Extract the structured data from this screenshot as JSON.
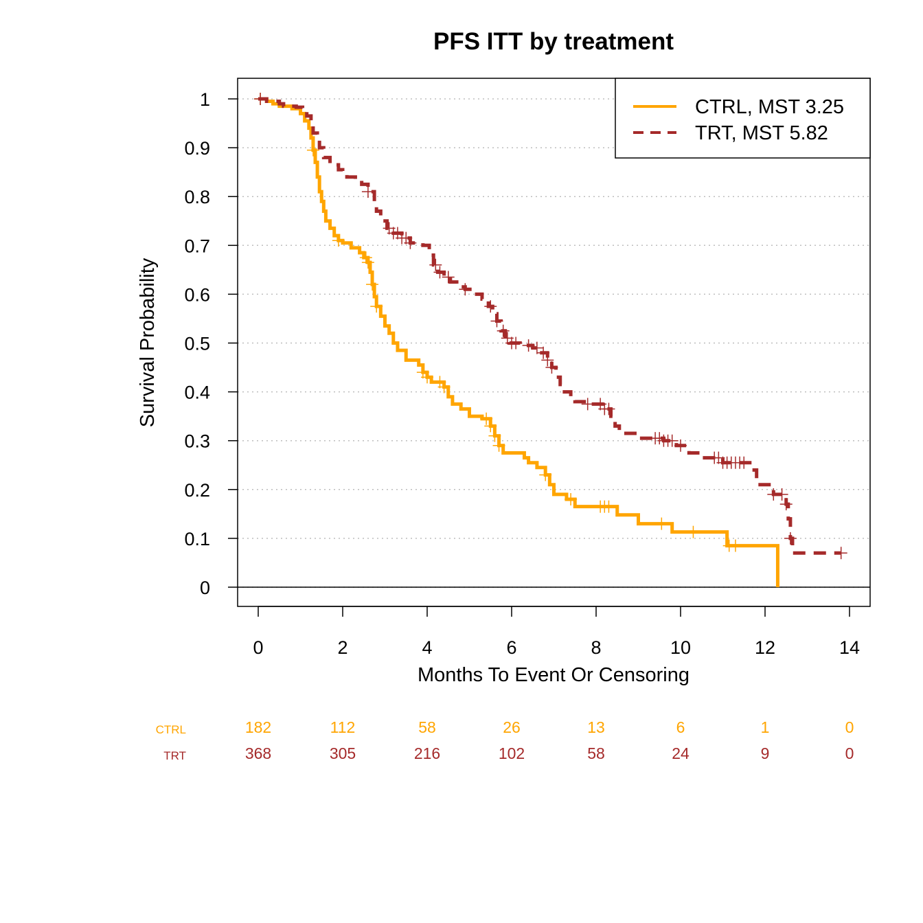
{
  "chart_data": {
    "type": "line",
    "title": "PFS ITT by treatment",
    "xlabel": "Months To Event Or Censoring",
    "ylabel": "Survival Probability",
    "xlim": [
      -0.5,
      14.5
    ],
    "ylim": [
      -0.04,
      1.04
    ],
    "x_ticks": [
      0,
      2,
      4,
      6,
      8,
      10,
      12,
      14
    ],
    "y_ticks": [
      0,
      0.1,
      0.2,
      0.3,
      0.4,
      0.5,
      0.6,
      0.7,
      0.8,
      0.9,
      1
    ],
    "x_tick_labels": [
      "0",
      "2",
      "4",
      "6",
      "8",
      "10",
      "12",
      "14"
    ],
    "y_tick_labels": [
      "0",
      "0.1",
      "0.2",
      "0.3",
      "0.4",
      "0.5",
      "0.6",
      "0.7",
      "0.8",
      "0.9",
      "1"
    ],
    "grid": "horizontal dotted at y ticks",
    "legend_position": "top-right",
    "series": [
      {
        "name": "CTRL, MST 3.25",
        "color": "#FFA500",
        "dash": "solid",
        "steps": [
          [
            0,
            1
          ],
          [
            0.2,
            0.995
          ],
          [
            0.35,
            0.99
          ],
          [
            0.5,
            0.985
          ],
          [
            0.8,
            0.98
          ],
          [
            1.0,
            0.97
          ],
          [
            1.1,
            0.955
          ],
          [
            1.2,
            0.94
          ],
          [
            1.25,
            0.92
          ],
          [
            1.3,
            0.895
          ],
          [
            1.35,
            0.87
          ],
          [
            1.4,
            0.84
          ],
          [
            1.45,
            0.81
          ],
          [
            1.5,
            0.79
          ],
          [
            1.55,
            0.77
          ],
          [
            1.6,
            0.75
          ],
          [
            1.7,
            0.735
          ],
          [
            1.8,
            0.72
          ],
          [
            1.9,
            0.71
          ],
          [
            2.0,
            0.705
          ],
          [
            2.2,
            0.695
          ],
          [
            2.4,
            0.685
          ],
          [
            2.5,
            0.675
          ],
          [
            2.6,
            0.665
          ],
          [
            2.65,
            0.645
          ],
          [
            2.7,
            0.62
          ],
          [
            2.75,
            0.595
          ],
          [
            2.8,
            0.575
          ],
          [
            2.9,
            0.555
          ],
          [
            3.0,
            0.535
          ],
          [
            3.1,
            0.52
          ],
          [
            3.2,
            0.5
          ],
          [
            3.3,
            0.485
          ],
          [
            3.5,
            0.465
          ],
          [
            3.8,
            0.455
          ],
          [
            3.9,
            0.44
          ],
          [
            4.0,
            0.43
          ],
          [
            4.1,
            0.42
          ],
          [
            4.4,
            0.41
          ],
          [
            4.5,
            0.39
          ],
          [
            4.6,
            0.375
          ],
          [
            4.8,
            0.365
          ],
          [
            5.0,
            0.35
          ],
          [
            5.3,
            0.345
          ],
          [
            5.5,
            0.33
          ],
          [
            5.6,
            0.31
          ],
          [
            5.7,
            0.29
          ],
          [
            5.8,
            0.275
          ],
          [
            6.3,
            0.265
          ],
          [
            6.4,
            0.255
          ],
          [
            6.6,
            0.245
          ],
          [
            6.8,
            0.23
          ],
          [
            6.9,
            0.21
          ],
          [
            7.0,
            0.19
          ],
          [
            7.3,
            0.18
          ],
          [
            7.5,
            0.165
          ],
          [
            8.5,
            0.148
          ],
          [
            9.0,
            0.13
          ],
          [
            9.8,
            0.113
          ],
          [
            11.1,
            0.085
          ],
          [
            12.3,
            0
          ]
        ],
        "censor_x": [
          0.05,
          1.3,
          1.9,
          2.55,
          2.6,
          2.7,
          2.8,
          3.9,
          4.0,
          4.3,
          4.4,
          5.4,
          5.5,
          5.6,
          5.7,
          6.8,
          7.4,
          8.1,
          8.2,
          8.3,
          9.55,
          10.3,
          11.15,
          11.3
        ]
      },
      {
        "name": "TRT, MST 5.82",
        "color": "#A52A2A",
        "dash": "dashed",
        "steps": [
          [
            0,
            1
          ],
          [
            0.2,
            0.995
          ],
          [
            0.5,
            0.99
          ],
          [
            0.6,
            0.985
          ],
          [
            0.9,
            0.983
          ],
          [
            1.05,
            0.98
          ],
          [
            1.15,
            0.965
          ],
          [
            1.25,
            0.945
          ],
          [
            1.3,
            0.93
          ],
          [
            1.4,
            0.915
          ],
          [
            1.45,
            0.9
          ],
          [
            1.55,
            0.88
          ],
          [
            1.7,
            0.865
          ],
          [
            1.9,
            0.855
          ],
          [
            2.0,
            0.85
          ],
          [
            2.1,
            0.84
          ],
          [
            2.3,
            0.835
          ],
          [
            2.45,
            0.825
          ],
          [
            2.6,
            0.81
          ],
          [
            2.75,
            0.79
          ],
          [
            2.8,
            0.77
          ],
          [
            2.9,
            0.75
          ],
          [
            3.05,
            0.735
          ],
          [
            3.2,
            0.725
          ],
          [
            3.4,
            0.715
          ],
          [
            3.6,
            0.705
          ],
          [
            3.9,
            0.7
          ],
          [
            4.05,
            0.68
          ],
          [
            4.15,
            0.66
          ],
          [
            4.25,
            0.645
          ],
          [
            4.4,
            0.635
          ],
          [
            4.55,
            0.625
          ],
          [
            4.7,
            0.615
          ],
          [
            4.9,
            0.61
          ],
          [
            5.1,
            0.6
          ],
          [
            5.3,
            0.59
          ],
          [
            5.45,
            0.575
          ],
          [
            5.55,
            0.56
          ],
          [
            5.65,
            0.545
          ],
          [
            5.75,
            0.525
          ],
          [
            5.85,
            0.51
          ],
          [
            5.95,
            0.5
          ],
          [
            6.2,
            0.495
          ],
          [
            6.5,
            0.49
          ],
          [
            6.65,
            0.48
          ],
          [
            6.85,
            0.465
          ],
          [
            6.95,
            0.45
          ],
          [
            7.05,
            0.43
          ],
          [
            7.15,
            0.415
          ],
          [
            7.25,
            0.4
          ],
          [
            7.4,
            0.39
          ],
          [
            7.5,
            0.38
          ],
          [
            7.8,
            0.375
          ],
          [
            8.2,
            0.365
          ],
          [
            8.35,
            0.35
          ],
          [
            8.45,
            0.33
          ],
          [
            8.55,
            0.315
          ],
          [
            9.0,
            0.305
          ],
          [
            9.6,
            0.3
          ],
          [
            9.9,
            0.29
          ],
          [
            10.2,
            0.275
          ],
          [
            10.5,
            0.265
          ],
          [
            11.0,
            0.255
          ],
          [
            11.7,
            0.24
          ],
          [
            11.8,
            0.21
          ],
          [
            12.2,
            0.19
          ],
          [
            12.5,
            0.17
          ],
          [
            12.55,
            0.14
          ],
          [
            12.6,
            0.1
          ],
          [
            12.65,
            0.07
          ],
          [
            13.8,
            0.07
          ]
        ],
        "censor_x": [
          0.05,
          2.6,
          3.1,
          3.2,
          3.3,
          3.4,
          3.5,
          3.6,
          4.2,
          4.3,
          4.5,
          4.9,
          5.5,
          5.65,
          5.8,
          5.9,
          6.0,
          6.1,
          6.4,
          6.6,
          6.75,
          6.85,
          6.95,
          7.8,
          8.1,
          8.2,
          8.3,
          9.4,
          9.5,
          9.6,
          9.7,
          9.8,
          10.0,
          10.8,
          10.9,
          11.0,
          11.1,
          11.2,
          11.3,
          11.4,
          11.5,
          12.2,
          12.4,
          12.5,
          12.6,
          13.8
        ]
      }
    ],
    "risk_table": {
      "times": [
        0,
        2,
        4,
        6,
        8,
        10,
        12,
        14
      ],
      "rows": [
        {
          "label": "CTRL",
          "color": "#FFA500",
          "counts": [
            "182",
            "112",
            "58",
            "26",
            "13",
            "6",
            "1",
            "0"
          ]
        },
        {
          "label": "TRT",
          "color": "#A52A2A",
          "counts": [
            "368",
            "305",
            "216",
            "102",
            "58",
            "24",
            "9",
            "0"
          ]
        }
      ]
    }
  }
}
